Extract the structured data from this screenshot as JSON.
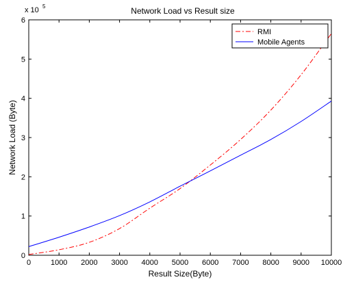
{
  "chart_data": {
    "type": "line",
    "title": "Network Load vs Result size",
    "xlabel": "Result Size(Byte)",
    "ylabel": "Network Load (Byte)",
    "y_multiplier_label": "x 10",
    "y_multiplier_exponent": "5",
    "xlim": [
      0,
      10000
    ],
    "ylim": [
      0,
      6
    ],
    "x_ticks": [
      0,
      1000,
      2000,
      3000,
      4000,
      5000,
      6000,
      7000,
      8000,
      9000,
      10000
    ],
    "x_tick_labels": [
      "0",
      "1000",
      "2000",
      "3000",
      "4000",
      "5000",
      "6000",
      "7000",
      "8000",
      "9000",
      "10000"
    ],
    "y_ticks": [
      0,
      1,
      2,
      3,
      4,
      5,
      6
    ],
    "y_tick_labels": [
      "0",
      "1",
      "2",
      "3",
      "4",
      "5",
      "6"
    ],
    "grid": false,
    "legend_position": "top-right",
    "series": [
      {
        "name": "RMI",
        "color": "#ff0000",
        "line_style": "dash-dot",
        "x": [
          0,
          1000,
          2000,
          3000,
          4000,
          5000,
          6000,
          7000,
          8000,
          9000,
          10000
        ],
        "y": [
          0.02,
          0.14,
          0.33,
          0.68,
          1.2,
          1.7,
          2.3,
          2.95,
          3.7,
          4.6,
          5.65
        ]
      },
      {
        "name": "Mobile Agents",
        "color": "#0000ff",
        "line_style": "solid",
        "x": [
          0,
          1000,
          2000,
          3000,
          4000,
          5000,
          6000,
          7000,
          8000,
          9000,
          10000
        ],
        "y": [
          0.22,
          0.46,
          0.72,
          1.01,
          1.36,
          1.76,
          2.15,
          2.55,
          2.95,
          3.41,
          3.93
        ]
      }
    ]
  }
}
